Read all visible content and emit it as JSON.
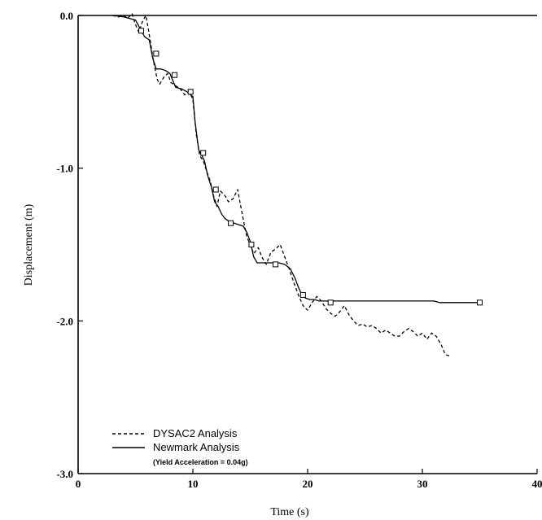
{
  "chart_data": {
    "type": "line",
    "xlabel": "Time (s)",
    "ylabel": "Displacement (m)",
    "xlim": [
      0,
      40
    ],
    "ylim": [
      -3.0,
      0.0
    ],
    "x_ticks": [
      0,
      10,
      20,
      30,
      40
    ],
    "x_tick_labels": [
      "0",
      "10",
      "20",
      "30",
      "40"
    ],
    "y_ticks": [
      0.0,
      -1.0,
      -2.0,
      -3.0
    ],
    "y_tick_labels": [
      "0.0",
      "-1.0",
      "-2.0",
      "-3.0"
    ],
    "grid": false,
    "legend_position": "bottom-left",
    "legend_note": "(Yield Acceleration = 0.04g)",
    "series": [
      {
        "name": "DYSAC2 Analysis",
        "style": "dashed",
        "color": "#000000",
        "x": [
          3.0,
          3.5,
          4.0,
          4.3,
          4.7,
          5.0,
          5.3,
          5.6,
          5.9,
          6.1,
          6.3,
          6.5,
          6.7,
          6.9,
          7.1,
          7.5,
          7.8,
          8.1,
          8.5,
          8.9,
          9.3,
          9.7,
          10.0,
          10.3,
          10.6,
          10.9,
          11.2,
          11.5,
          11.8,
          12.1,
          12.4,
          12.8,
          13.1,
          13.5,
          13.9,
          14.3,
          14.7,
          15.0,
          15.3,
          15.7,
          16.0,
          16.4,
          16.8,
          17.2,
          17.6,
          18.0,
          18.4,
          18.8,
          19.2,
          19.6,
          20.0,
          20.4,
          20.8,
          21.2,
          21.6,
          22.0,
          22.4,
          22.8,
          23.2,
          23.6,
          24.0,
          24.4,
          24.8,
          25.2,
          25.6,
          26.0,
          26.4,
          26.8,
          27.2,
          27.6,
          28.0,
          28.4,
          28.8,
          29.2,
          29.6,
          30.0,
          30.4,
          30.8,
          31.2,
          31.6,
          32.0,
          32.4
        ],
        "y": [
          0.0,
          -0.01,
          0.0,
          -0.02,
          0.01,
          -0.06,
          -0.11,
          -0.04,
          0.0,
          -0.08,
          -0.17,
          -0.27,
          -0.35,
          -0.42,
          -0.45,
          -0.4,
          -0.38,
          -0.44,
          -0.46,
          -0.48,
          -0.52,
          -0.5,
          -0.55,
          -0.78,
          -0.92,
          -0.95,
          -1.02,
          -1.08,
          -1.18,
          -1.25,
          -1.15,
          -1.18,
          -1.22,
          -1.2,
          -1.14,
          -1.3,
          -1.45,
          -1.5,
          -1.56,
          -1.52,
          -1.58,
          -1.63,
          -1.55,
          -1.53,
          -1.5,
          -1.58,
          -1.66,
          -1.75,
          -1.83,
          -1.9,
          -1.93,
          -1.88,
          -1.84,
          -1.87,
          -1.92,
          -1.95,
          -1.97,
          -1.94,
          -1.9,
          -1.96,
          -2.0,
          -2.03,
          -2.02,
          -2.04,
          -2.03,
          -2.05,
          -2.08,
          -2.06,
          -2.08,
          -2.1,
          -2.1,
          -2.07,
          -2.05,
          -2.07,
          -2.1,
          -2.08,
          -2.12,
          -2.08,
          -2.1,
          -2.15,
          -2.22,
          -2.23
        ]
      },
      {
        "name": "Newmark Analysis",
        "style": "solid",
        "color": "#000000",
        "x": [
          3.0,
          4.0,
          4.5,
          5.0,
          5.5,
          5.8,
          6.2,
          6.5,
          6.8,
          7.2,
          7.6,
          8.0,
          8.5,
          9.0,
          9.5,
          9.8,
          10.0,
          10.2,
          10.5,
          10.8,
          11.0,
          11.3,
          11.6,
          11.9,
          12.2,
          12.5,
          12.8,
          13.2,
          13.6,
          14.0,
          14.4,
          14.7,
          15.0,
          15.3,
          15.6,
          16.0,
          16.5,
          17.0,
          17.5,
          18.0,
          18.5,
          18.9,
          19.2,
          19.5,
          19.8,
          20.2,
          20.6,
          21.0,
          21.5,
          22.0,
          23.0,
          25.0,
          27.0,
          29.0,
          31.0,
          31.5,
          33.0,
          35.0
        ],
        "y": [
          0.0,
          -0.01,
          -0.02,
          -0.03,
          -0.1,
          -0.14,
          -0.16,
          -0.28,
          -0.35,
          -0.35,
          -0.36,
          -0.38,
          -0.47,
          -0.48,
          -0.5,
          -0.52,
          -0.53,
          -0.7,
          -0.88,
          -0.92,
          -0.95,
          -1.05,
          -1.12,
          -1.22,
          -1.25,
          -1.3,
          -1.33,
          -1.35,
          -1.36,
          -1.37,
          -1.38,
          -1.42,
          -1.48,
          -1.58,
          -1.62,
          -1.62,
          -1.62,
          -1.62,
          -1.62,
          -1.63,
          -1.66,
          -1.72,
          -1.78,
          -1.83,
          -1.85,
          -1.86,
          -1.86,
          -1.87,
          -1.87,
          -1.87,
          -1.87,
          -1.87,
          -1.87,
          -1.87,
          -1.87,
          -1.88,
          -1.88,
          -1.88
        ],
        "marker_x": [
          5.5,
          6.8,
          8.4,
          9.8,
          10.9,
          12.0,
          13.3,
          15.1,
          17.2,
          19.6,
          22.0,
          35.0
        ],
        "marker_y": [
          -0.1,
          -0.25,
          -0.39,
          -0.5,
          -0.9,
          -1.14,
          -1.36,
          -1.5,
          -1.63,
          -1.83,
          -1.88,
          -1.88
        ]
      }
    ]
  }
}
